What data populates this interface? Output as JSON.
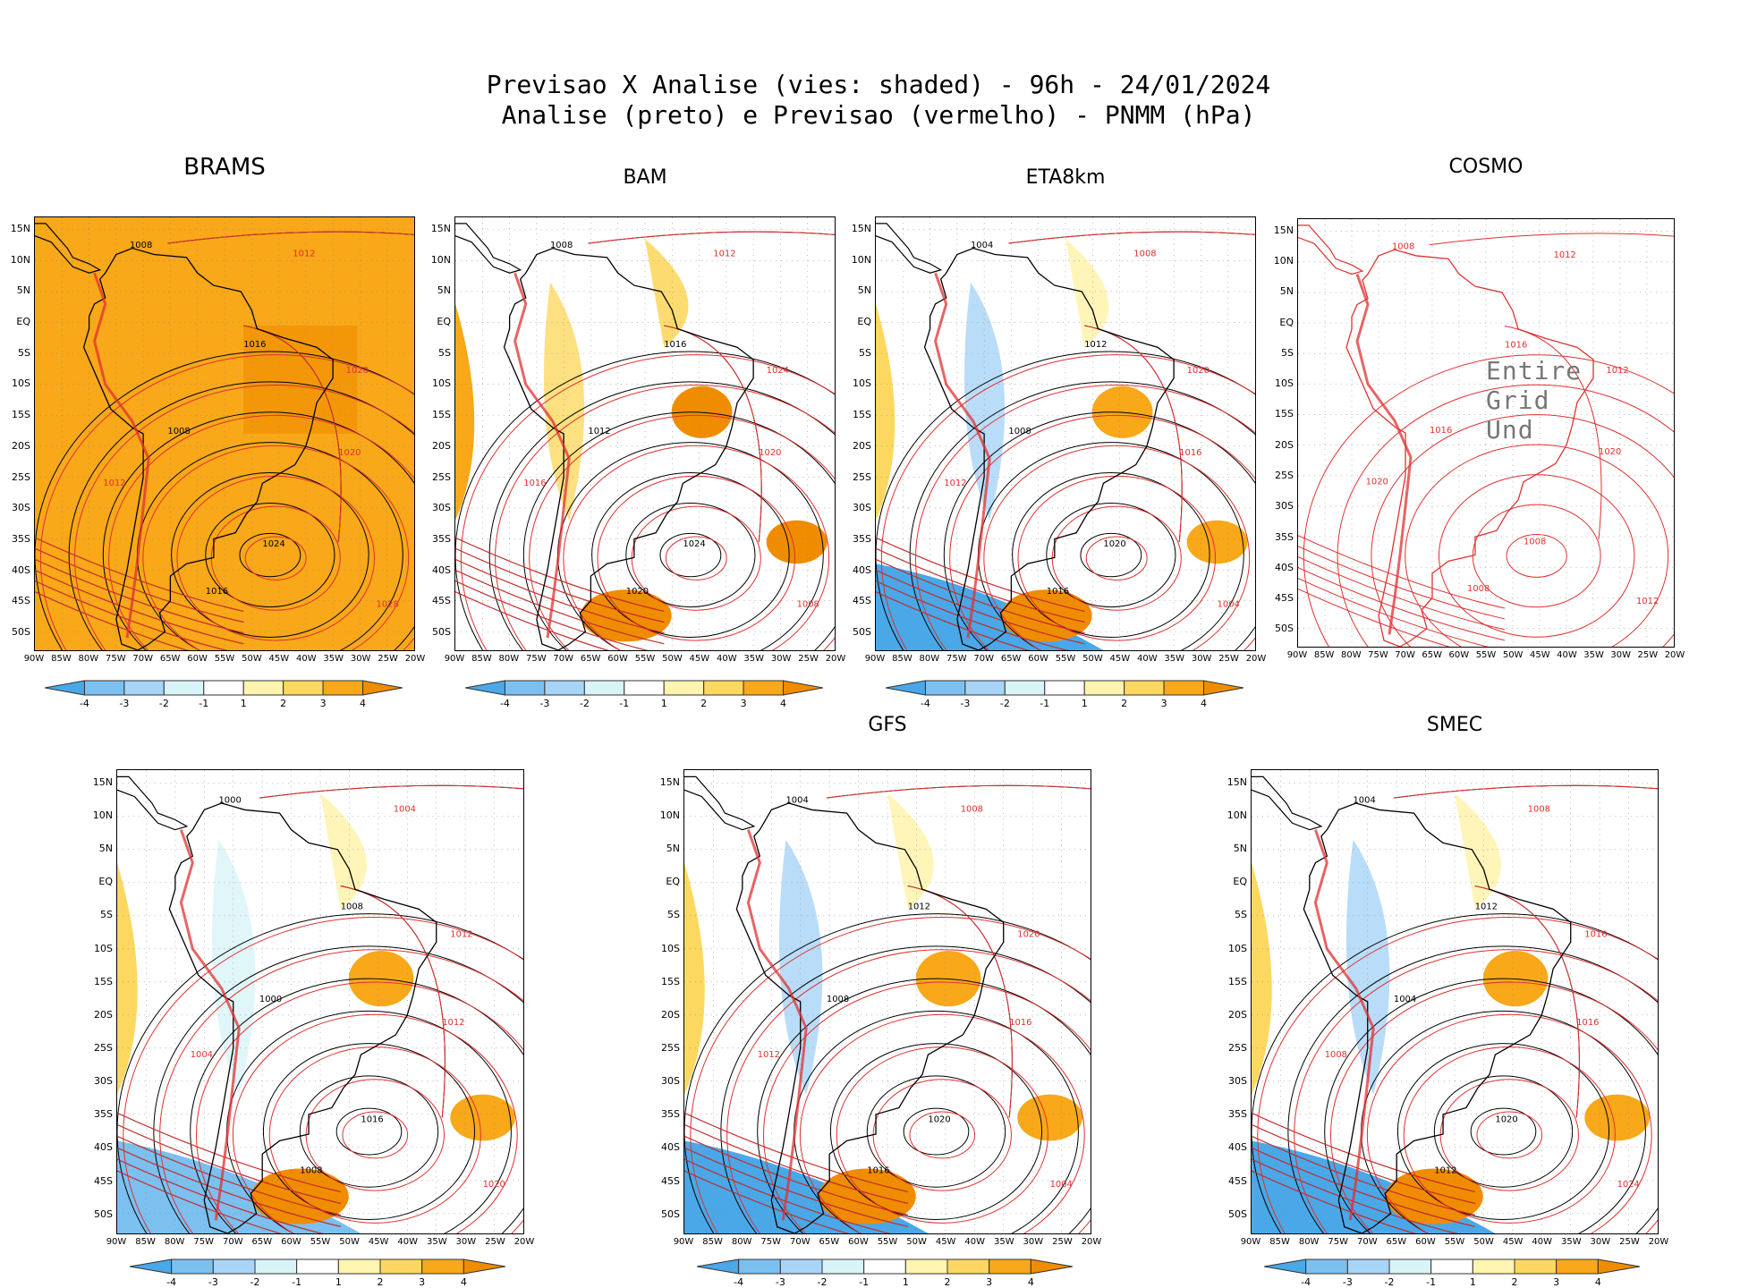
{
  "title": {
    "line1": "Previsao X Analise (vies: shaded) - 96h - 24/01/2024",
    "line2": "Analise (preto) e Previsao (vermelho) - PNMM (hPa)"
  },
  "axes": {
    "lat_labels": [
      "15N",
      "10N",
      "5N",
      "EQ",
      "5S",
      "10S",
      "15S",
      "20S",
      "25S",
      "30S",
      "35S",
      "40S",
      "45S",
      "50S"
    ],
    "lon_labels": [
      "90W",
      "85W",
      "80W",
      "75W",
      "70W",
      "65W",
      "60W",
      "55W",
      "50W",
      "45W",
      "40W",
      "35W",
      "30W",
      "25W",
      "20W"
    ]
  },
  "legend": {
    "ticks": [
      "-4",
      "-3",
      "-2",
      "-1",
      "1",
      "2",
      "3",
      "4"
    ],
    "colors": [
      "#4aa8e8",
      "#7cc0f0",
      "#a8d4f8",
      "#d8f4f8",
      "#ffffff",
      "#fff4b0",
      "#fcd860",
      "#f8a818",
      "#f08c00"
    ]
  },
  "colors": {
    "analysis": "#000000",
    "forecast": "#e03030",
    "warm": "#f5a623",
    "cold": "#6fb8ec"
  },
  "panels": [
    {
      "id": "brams",
      "title": "BRAMS",
      "bias_levels": [
        4,
        3
      ],
      "contour_labels": [
        "1008",
        "1012",
        "1016",
        "1020",
        "1024",
        "1028"
      ]
    },
    {
      "id": "bam",
      "title": "BAM",
      "bias_levels": [
        2,
        3
      ],
      "contour_labels": [
        "1008",
        "1012",
        "1016",
        "1020",
        "1024"
      ]
    },
    {
      "id": "eta8km",
      "title": "ETA8km",
      "bias_levels": [
        -2,
        2
      ],
      "contour_labels": [
        "1004",
        "1008",
        "1012",
        "1016",
        "1020"
      ]
    },
    {
      "id": "cosmo",
      "title": "COSMO",
      "overlay": "Entire Grid Und",
      "contour_labels": [
        "1008",
        "1012",
        "1016",
        "1020"
      ]
    },
    {
      "id": "unnamed",
      "title": "",
      "bias_levels": [
        -1,
        2
      ],
      "contour_labels": [
        "1000",
        "1004",
        "1008",
        "1012",
        "1016",
        "1020"
      ]
    },
    {
      "id": "gfs",
      "title": "GFS",
      "bias_levels": [
        -2,
        2
      ],
      "contour_labels": [
        "1004",
        "1008",
        "1012",
        "1016",
        "1020"
      ]
    },
    {
      "id": "smec",
      "title": "SMEC",
      "bias_levels": [
        -2,
        2
      ],
      "contour_labels": [
        "1004",
        "1008",
        "1012",
        "1016",
        "1020",
        "1024"
      ]
    }
  ]
}
